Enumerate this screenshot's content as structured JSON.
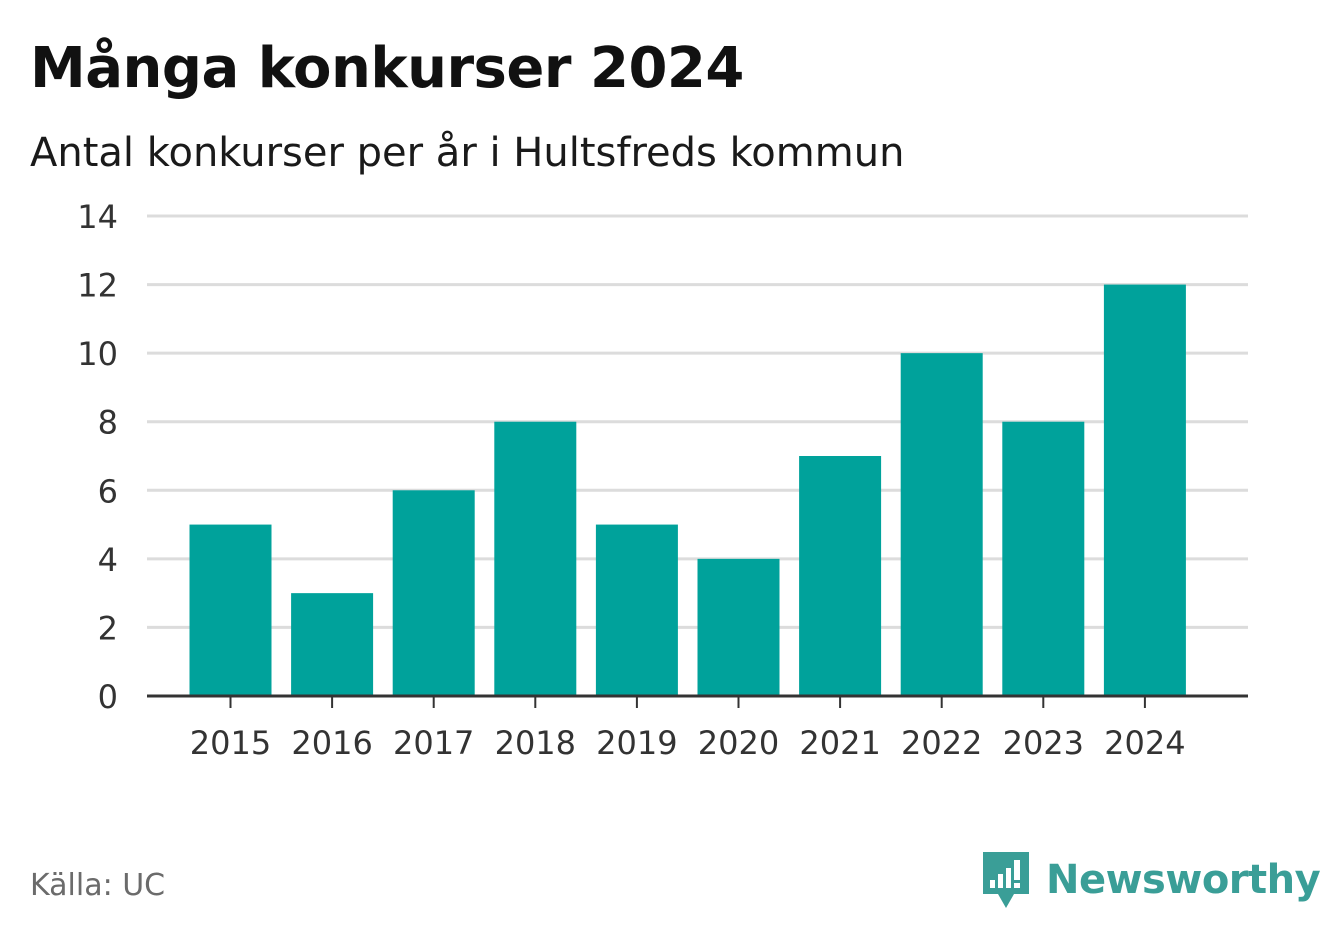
{
  "header": {
    "title": "Många konkurser 2024",
    "subtitle": "Antal konkurser per år i Hultsfreds kommun"
  },
  "footer": {
    "source": "Källa: UC",
    "brand": "Newsworthy"
  },
  "colors": {
    "bar": "#00a29b",
    "grid": "#dcdcdc",
    "axis": "#333333",
    "brand": "#3a9e97"
  },
  "chart_data": {
    "type": "bar",
    "categories": [
      "2015",
      "2016",
      "2017",
      "2018",
      "2019",
      "2020",
      "2021",
      "2022",
      "2023",
      "2024"
    ],
    "values": [
      5,
      3,
      6,
      8,
      5,
      4,
      7,
      10,
      8,
      12
    ],
    "title": "Många konkurser 2024",
    "subtitle": "Antal konkurser per år i Hultsfreds kommun",
    "xlabel": "",
    "ylabel": "",
    "ylim": [
      0,
      14
    ],
    "yticks": [
      0,
      2,
      4,
      6,
      8,
      10,
      12,
      14
    ],
    "grid": true,
    "legend": "none"
  }
}
